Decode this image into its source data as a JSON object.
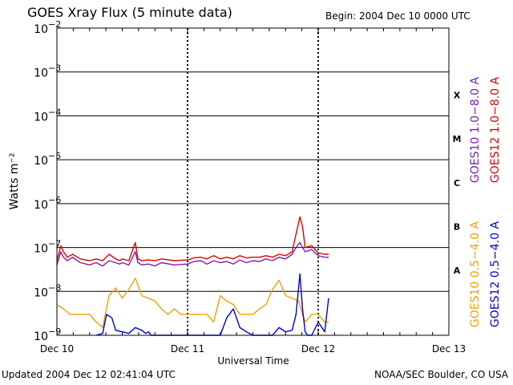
{
  "header": {
    "title": "GOES Xray Flux (5 minute data)",
    "begin": "Begin:  2004 Dec 10 0000 UTC"
  },
  "footer": {
    "updated": "Updated 2004 Dec 12 02:41:04 UTC",
    "source": "NOAA/SEC Boulder, CO USA"
  },
  "chart_data": {
    "type": "line",
    "title": "GOES Xray Flux (5 minute data)",
    "xlabel": "Universal Time",
    "ylabel": "Watts m⁻²",
    "yscale": "log",
    "ylim": [
      1e-09,
      0.01
    ],
    "xlim": [
      0,
      3
    ],
    "x_tick_labels": [
      "Dec 10",
      "Dec 11",
      "Dec 12",
      "Dec 13"
    ],
    "y_tick_labels": [
      {
        "base": "10",
        "exp": "−9",
        "value": 1e-09
      },
      {
        "base": "10",
        "exp": "−8",
        "value": 1e-08
      },
      {
        "base": "10",
        "exp": "−7",
        "value": 1e-07
      },
      {
        "base": "10",
        "exp": "−6",
        "value": 1e-06
      },
      {
        "base": "10",
        "exp": "−5",
        "value": 1e-05
      },
      {
        "base": "10",
        "exp": "−4",
        "value": 0.0001
      },
      {
        "base": "10",
        "exp": "−3",
        "value": 0.001
      },
      {
        "base": "10",
        "exp": "−2",
        "value": 0.01
      }
    ],
    "flare_classes": [
      {
        "label": "A",
        "value": 3e-08
      },
      {
        "label": "B",
        "value": 3e-07
      },
      {
        "label": "C",
        "value": 3e-06
      },
      {
        "label": "M",
        "value": 3e-05
      },
      {
        "label": "X",
        "value": 0.0003
      }
    ],
    "series": [
      {
        "name": "GOES10 1.0−8.0 A",
        "color": "#7a1fb5",
        "x": [
          0.0,
          0.03,
          0.05,
          0.08,
          0.12,
          0.18,
          0.25,
          0.3,
          0.35,
          0.4,
          0.45,
          0.48,
          0.5,
          0.55,
          0.6,
          0.62,
          0.65,
          0.7,
          0.75,
          0.8,
          0.9,
          1.0,
          1.05,
          1.1,
          1.15,
          1.2,
          1.25,
          1.3,
          1.35,
          1.4,
          1.45,
          1.5,
          1.55,
          1.6,
          1.65,
          1.7,
          1.75,
          1.8,
          1.83,
          1.86,
          1.88,
          1.9,
          1.95,
          2.0,
          2.05,
          2.08
        ],
        "y": [
          4e-08,
          8e-08,
          6e-08,
          5e-08,
          6e-08,
          4.5e-08,
          4e-08,
          4.5e-08,
          3.8e-08,
          5e-08,
          4.5e-08,
          4.2e-08,
          4.5e-08,
          4e-08,
          8e-08,
          4.5e-08,
          4e-08,
          4.2e-08,
          3.8e-08,
          4.5e-08,
          4e-08,
          4.2e-08,
          4.8e-08,
          5e-08,
          4.2e-08,
          5e-08,
          4.5e-08,
          4.8e-08,
          4.2e-08,
          5.2e-08,
          4.5e-08,
          5e-08,
          4.8e-08,
          5.5e-08,
          5e-08,
          6e-08,
          5.5e-08,
          7e-08,
          1e-07,
          1.3e-07,
          1e-07,
          8e-08,
          9e-08,
          6.5e-08,
          6e-08,
          6e-08
        ]
      },
      {
        "name": "GOES12 1.0−8.0 A",
        "color": "#e00000",
        "x": [
          0.0,
          0.03,
          0.05,
          0.08,
          0.12,
          0.18,
          0.25,
          0.3,
          0.35,
          0.4,
          0.45,
          0.48,
          0.5,
          0.55,
          0.6,
          0.62,
          0.65,
          0.7,
          0.75,
          0.8,
          0.9,
          1.0,
          1.05,
          1.1,
          1.15,
          1.2,
          1.25,
          1.3,
          1.35,
          1.4,
          1.45,
          1.5,
          1.55,
          1.6,
          1.65,
          1.7,
          1.75,
          1.8,
          1.83,
          1.86,
          1.88,
          1.9,
          1.95,
          2.0,
          2.05,
          2.08
        ],
        "y": [
          5e-08,
          1.1e-07,
          8e-08,
          6e-08,
          7e-08,
          5.5e-08,
          5e-08,
          5.5e-08,
          5e-08,
          7e-08,
          5.5e-08,
          5e-08,
          5.5e-08,
          5e-08,
          1.3e-07,
          5.5e-08,
          5e-08,
          5.2e-08,
          5e-08,
          5.5e-08,
          5e-08,
          5.2e-08,
          5.8e-08,
          6e-08,
          5.5e-08,
          6.5e-08,
          5.5e-08,
          6e-08,
          5.5e-08,
          6.5e-08,
          5.8e-08,
          6e-08,
          6e-08,
          6.5e-08,
          6e-08,
          7e-08,
          6.5e-08,
          8e-08,
          2e-07,
          5e-07,
          3e-07,
          1e-07,
          1.1e-07,
          7.5e-08,
          7e-08,
          7e-08
        ]
      },
      {
        "name": "GOES10 0.5−4.0 A",
        "color": "#f0a000",
        "x": [
          0.0,
          0.05,
          0.1,
          0.15,
          0.2,
          0.25,
          0.3,
          0.35,
          0.4,
          0.45,
          0.5,
          0.55,
          0.6,
          0.65,
          0.7,
          0.75,
          0.8,
          0.85,
          0.9,
          0.95,
          1.0,
          1.05,
          1.1,
          1.15,
          1.2,
          1.25,
          1.3,
          1.35,
          1.4,
          1.45,
          1.5,
          1.55,
          1.6,
          1.65,
          1.7,
          1.75,
          1.8,
          1.85,
          1.88,
          1.9,
          1.95,
          2.0,
          2.05,
          2.08
        ],
        "y": [
          5e-09,
          4e-09,
          3e-09,
          3e-09,
          3e-09,
          3e-09,
          2e-09,
          1.5e-09,
          8e-09,
          1.2e-08,
          7e-09,
          1.1e-08,
          2e-08,
          8e-09,
          7e-09,
          6e-09,
          4e-09,
          3e-09,
          4e-09,
          3e-09,
          3e-09,
          3e-09,
          3e-09,
          3e-09,
          2e-09,
          8e-09,
          6e-09,
          5e-09,
          3e-09,
          3e-09,
          3e-09,
          4e-09,
          5e-09,
          1.1e-08,
          1.8e-08,
          8e-09,
          7e-09,
          6e-09,
          3e-09,
          2e-09,
          3e-09,
          3e-09,
          2e-09,
          2e-09
        ]
      },
      {
        "name": "GOES12 0.5−4.0 A",
        "color": "#0000e0",
        "x": [
          0.3,
          0.35,
          0.38,
          0.42,
          0.45,
          0.5,
          0.55,
          0.6,
          0.65,
          0.68,
          0.7,
          0.72,
          0.75,
          0.8,
          0.85,
          0.9,
          0.95,
          1.0,
          1.05,
          1.1,
          1.15,
          1.2,
          1.25,
          1.3,
          1.35,
          1.4,
          1.45,
          1.5,
          1.55,
          1.6,
          1.65,
          1.7,
          1.75,
          1.8,
          1.83,
          1.86,
          1.88,
          1.9,
          1.92,
          1.95,
          2.0,
          2.05,
          2.08
        ],
        "y": [
          1e-09,
          1.1e-09,
          3e-09,
          2.5e-09,
          1.3e-09,
          1.2e-09,
          1.1e-09,
          1.5e-09,
          1.3e-09,
          1.1e-09,
          1.2e-09,
          1e-09,
          1e-09,
          1e-09,
          1e-09,
          1e-09,
          1e-09,
          1e-09,
          1e-09,
          1e-09,
          1e-09,
          1e-09,
          1e-09,
          2.5e-09,
          4e-09,
          1.5e-09,
          1.2e-09,
          1e-09,
          1e-09,
          1e-09,
          1e-09,
          1.5e-09,
          1.2e-09,
          1.3e-09,
          3e-09,
          2.5e-08,
          4e-09,
          1.2e-09,
          1e-09,
          1e-09,
          2e-09,
          1.2e-09,
          7e-09
        ]
      }
    ],
    "legend_placement": "right"
  }
}
